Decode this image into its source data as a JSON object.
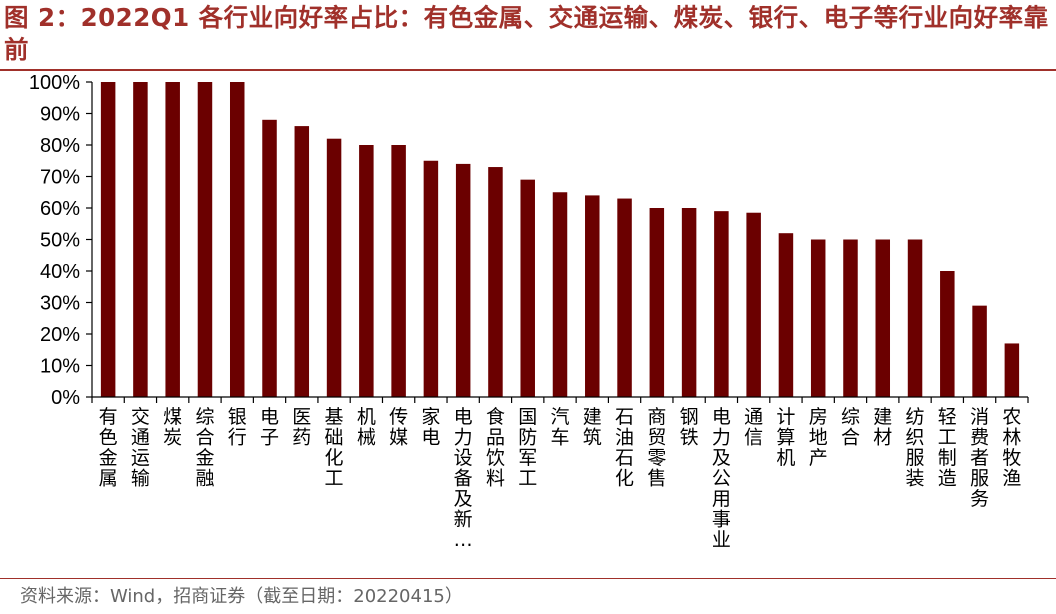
{
  "title": "图 2：2022Q1 各行业向好率占比：有色金属、交通运输、煤炭、银行、电子等行业向好率靠前",
  "source": "资料来源：Wind，招商证券（截至日期：20220415）",
  "colors": {
    "bar": "#6B0000",
    "title": "#A0302A",
    "axis": "#000000"
  },
  "chart_data": {
    "type": "bar",
    "categories": [
      "有色金属",
      "交通运输",
      "煤炭",
      "综合金融",
      "银行",
      "电子",
      "医药",
      "基础化工",
      "机械",
      "传媒",
      "家电",
      "电力设备及新…",
      "食品饮料",
      "国防军工",
      "汽车",
      "建筑",
      "石油石化",
      "商贸零售",
      "钢铁",
      "电力及公用事业",
      "通信",
      "计算机",
      "房地产",
      "综合",
      "建材",
      "纺织服装",
      "轻工制造",
      "消费者服务",
      "农林牧渔"
    ],
    "values": [
      100,
      100,
      100,
      100,
      100,
      88,
      86,
      82,
      80,
      80,
      75,
      74,
      73,
      69,
      65,
      64,
      63,
      60,
      60,
      59,
      58.5,
      52,
      50,
      50,
      50,
      50,
      40,
      29,
      17
    ],
    "yticks": [
      "0%",
      "10%",
      "20%",
      "30%",
      "40%",
      "50%",
      "60%",
      "70%",
      "80%",
      "90%",
      "100%"
    ],
    "ylim": [
      0,
      100
    ],
    "title": "",
    "xlabel": "",
    "ylabel": "",
    "grid": false,
    "legend": "none"
  }
}
